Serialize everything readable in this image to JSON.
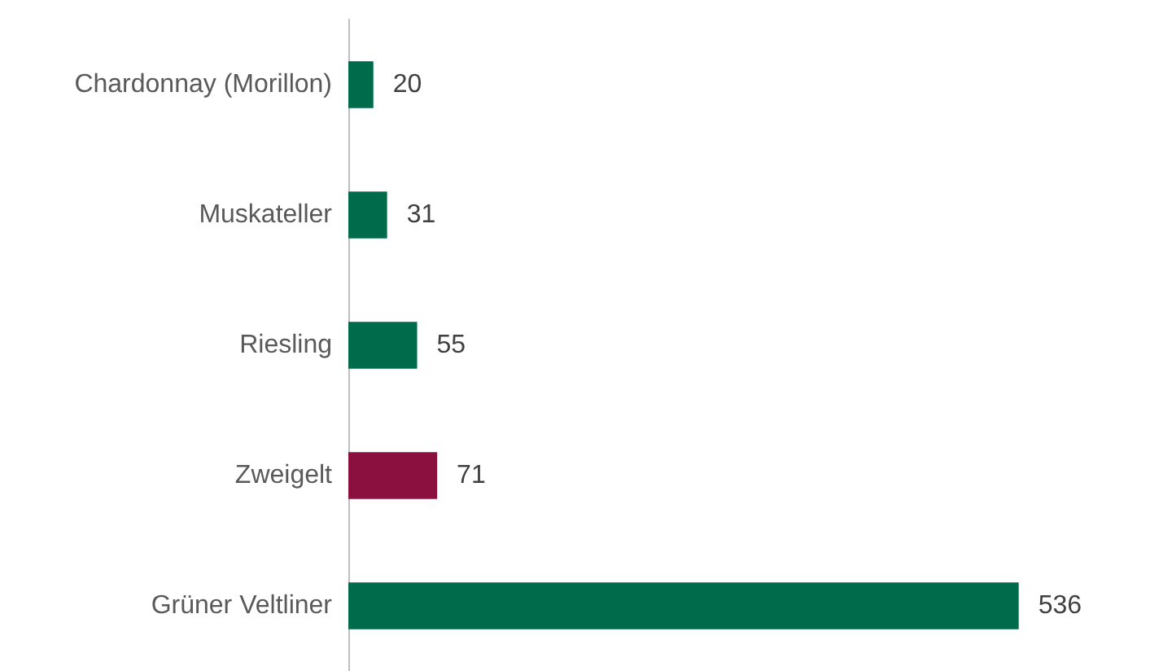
{
  "chart_data": {
    "type": "bar",
    "orientation": "horizontal",
    "categories": [
      "Chardonnay (Morillon)",
      "Muskateller",
      "Riesling",
      "Zweigelt",
      "Grüner Veltliner"
    ],
    "values": [
      20,
      31,
      55,
      71,
      536
    ],
    "colors": [
      "#006b4a",
      "#006b4a",
      "#006b4a",
      "#8b1040",
      "#006b4a"
    ],
    "data_labels": true
  }
}
